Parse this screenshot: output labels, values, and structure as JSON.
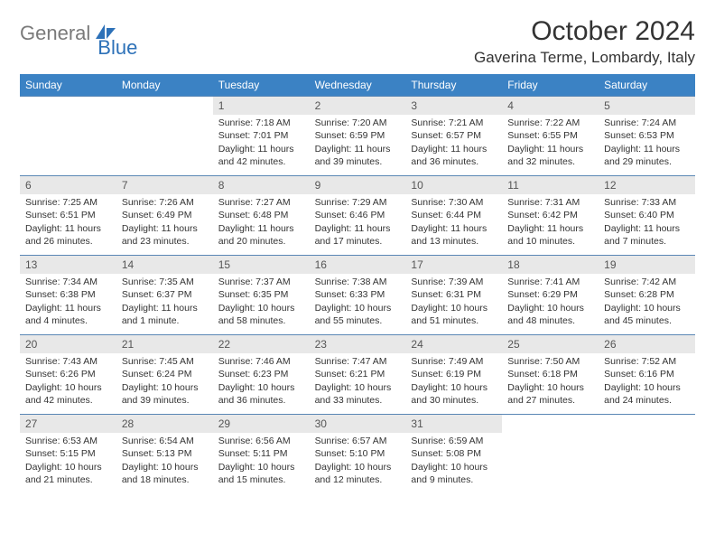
{
  "logo": {
    "part1": "General",
    "part2": "Blue"
  },
  "header": {
    "month_title": "October 2024",
    "location": "Gaverina Terme, Lombardy, Italy"
  },
  "colors": {
    "header_bg": "#3b82c4",
    "header_text": "#ffffff",
    "daynum_bg": "#e8e8e8",
    "cell_border": "#5a87b5",
    "logo_gray": "#7a7a7a",
    "logo_blue": "#2d71b8"
  },
  "day_names": [
    "Sunday",
    "Monday",
    "Tuesday",
    "Wednesday",
    "Thursday",
    "Friday",
    "Saturday"
  ],
  "first_day_index": 2,
  "days": [
    {
      "n": 1,
      "sr": "7:18 AM",
      "ss": "7:01 PM",
      "dl": "11 hours and 42 minutes."
    },
    {
      "n": 2,
      "sr": "7:20 AM",
      "ss": "6:59 PM",
      "dl": "11 hours and 39 minutes."
    },
    {
      "n": 3,
      "sr": "7:21 AM",
      "ss": "6:57 PM",
      "dl": "11 hours and 36 minutes."
    },
    {
      "n": 4,
      "sr": "7:22 AM",
      "ss": "6:55 PM",
      "dl": "11 hours and 32 minutes."
    },
    {
      "n": 5,
      "sr": "7:24 AM",
      "ss": "6:53 PM",
      "dl": "11 hours and 29 minutes."
    },
    {
      "n": 6,
      "sr": "7:25 AM",
      "ss": "6:51 PM",
      "dl": "11 hours and 26 minutes."
    },
    {
      "n": 7,
      "sr": "7:26 AM",
      "ss": "6:49 PM",
      "dl": "11 hours and 23 minutes."
    },
    {
      "n": 8,
      "sr": "7:27 AM",
      "ss": "6:48 PM",
      "dl": "11 hours and 20 minutes."
    },
    {
      "n": 9,
      "sr": "7:29 AM",
      "ss": "6:46 PM",
      "dl": "11 hours and 17 minutes."
    },
    {
      "n": 10,
      "sr": "7:30 AM",
      "ss": "6:44 PM",
      "dl": "11 hours and 13 minutes."
    },
    {
      "n": 11,
      "sr": "7:31 AM",
      "ss": "6:42 PM",
      "dl": "11 hours and 10 minutes."
    },
    {
      "n": 12,
      "sr": "7:33 AM",
      "ss": "6:40 PM",
      "dl": "11 hours and 7 minutes."
    },
    {
      "n": 13,
      "sr": "7:34 AM",
      "ss": "6:38 PM",
      "dl": "11 hours and 4 minutes."
    },
    {
      "n": 14,
      "sr": "7:35 AM",
      "ss": "6:37 PM",
      "dl": "11 hours and 1 minute."
    },
    {
      "n": 15,
      "sr": "7:37 AM",
      "ss": "6:35 PM",
      "dl": "10 hours and 58 minutes."
    },
    {
      "n": 16,
      "sr": "7:38 AM",
      "ss": "6:33 PM",
      "dl": "10 hours and 55 minutes."
    },
    {
      "n": 17,
      "sr": "7:39 AM",
      "ss": "6:31 PM",
      "dl": "10 hours and 51 minutes."
    },
    {
      "n": 18,
      "sr": "7:41 AM",
      "ss": "6:29 PM",
      "dl": "10 hours and 48 minutes."
    },
    {
      "n": 19,
      "sr": "7:42 AM",
      "ss": "6:28 PM",
      "dl": "10 hours and 45 minutes."
    },
    {
      "n": 20,
      "sr": "7:43 AM",
      "ss": "6:26 PM",
      "dl": "10 hours and 42 minutes."
    },
    {
      "n": 21,
      "sr": "7:45 AM",
      "ss": "6:24 PM",
      "dl": "10 hours and 39 minutes."
    },
    {
      "n": 22,
      "sr": "7:46 AM",
      "ss": "6:23 PM",
      "dl": "10 hours and 36 minutes."
    },
    {
      "n": 23,
      "sr": "7:47 AM",
      "ss": "6:21 PM",
      "dl": "10 hours and 33 minutes."
    },
    {
      "n": 24,
      "sr": "7:49 AM",
      "ss": "6:19 PM",
      "dl": "10 hours and 30 minutes."
    },
    {
      "n": 25,
      "sr": "7:50 AM",
      "ss": "6:18 PM",
      "dl": "10 hours and 27 minutes."
    },
    {
      "n": 26,
      "sr": "7:52 AM",
      "ss": "6:16 PM",
      "dl": "10 hours and 24 minutes."
    },
    {
      "n": 27,
      "sr": "6:53 AM",
      "ss": "5:15 PM",
      "dl": "10 hours and 21 minutes."
    },
    {
      "n": 28,
      "sr": "6:54 AM",
      "ss": "5:13 PM",
      "dl": "10 hours and 18 minutes."
    },
    {
      "n": 29,
      "sr": "6:56 AM",
      "ss": "5:11 PM",
      "dl": "10 hours and 15 minutes."
    },
    {
      "n": 30,
      "sr": "6:57 AM",
      "ss": "5:10 PM",
      "dl": "10 hours and 12 minutes."
    },
    {
      "n": 31,
      "sr": "6:59 AM",
      "ss": "5:08 PM",
      "dl": "10 hours and 9 minutes."
    }
  ],
  "labels": {
    "sunrise": "Sunrise:",
    "sunset": "Sunset:",
    "daylight": "Daylight:"
  }
}
